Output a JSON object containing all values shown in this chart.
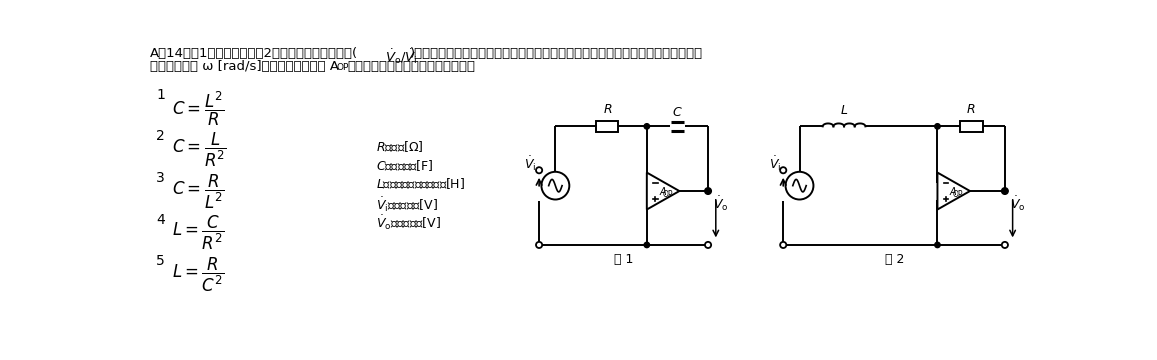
{
  "bg_color": "#ffffff",
  "text_color": "#000000",
  "title_part1": "A－14　図1に示す回路と図2に示す回路の伝達関数(",
  "title_math": "$\\dot{V}_{\\mathrm{o}}$/$\\dot{V}_{\\mathrm{i}}$",
  "title_part2": ")が等しくなる条件を表す式として、正しいものを下の番号から選べ。ただし、角",
  "title_line2a": "　　周波数を ω [rad/s]とし、演算増幅器 A",
  "title_line2b": "OP",
  "title_line2c": "は理想的な特性を持つものとする。",
  "options": [
    [
      1,
      "$C=\\dfrac{L^{2}}{R}$"
    ],
    [
      2,
      "$C=\\dfrac{L}{R^{2}}$"
    ],
    [
      3,
      "$C=\\dfrac{R}{L^{2}}$"
    ],
    [
      4,
      "$L=\\dfrac{C}{R^{2}}$"
    ],
    [
      5,
      "$L=\\dfrac{R}{C^{2}}$"
    ]
  ],
  "legend": [
    "$R$：抗抗[Ω]",
    "$C$：静電容量[F]",
    "$L$：自己インダクタンス[H]",
    "$\\dot{V}_{\\mathrm{i}}$：入力電圧[V]",
    "$\\dot{V}_{\\mathrm{o}}$：出力電圧[V]"
  ],
  "fig1_label": "図 1",
  "fig2_label": "図 2"
}
